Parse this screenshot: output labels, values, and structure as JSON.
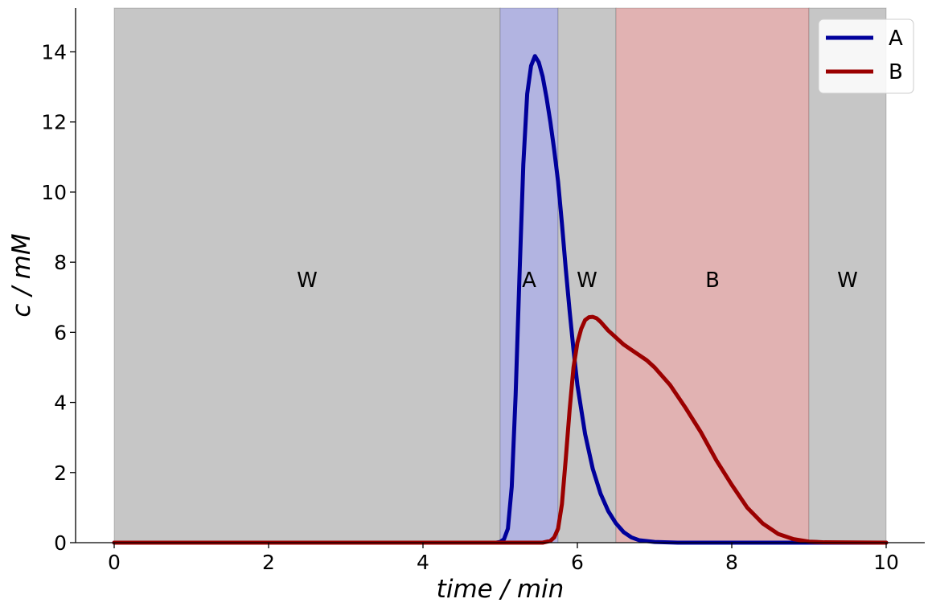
{
  "chart_data": {
    "type": "line",
    "xlabel": "time / min",
    "ylabel": "c / mM",
    "xlim": [
      -0.5,
      10.5
    ],
    "ylim": [
      0,
      15.25
    ],
    "x_ticks": [
      0,
      2,
      4,
      6,
      8,
      10
    ],
    "y_ticks": [
      0,
      2,
      4,
      6,
      8,
      10,
      12,
      14
    ],
    "grid": false,
    "legend": {
      "position": "top-right"
    },
    "regions": [
      {
        "label": "W",
        "start": 0,
        "end": 5.0,
        "color": "#c6c6c6"
      },
      {
        "label": "A",
        "start": 5.0,
        "end": 5.75,
        "color": "#b2b4e1"
      },
      {
        "label": "W",
        "start": 5.75,
        "end": 6.5,
        "color": "#c6c6c6"
      },
      {
        "label": "B",
        "start": 6.5,
        "end": 9.0,
        "color": "#e1b2b2"
      },
      {
        "label": "W",
        "start": 9.0,
        "end": 10.0,
        "color": "#c6c6c6"
      }
    ],
    "series": [
      {
        "name": "A",
        "color": "#00009b",
        "points": [
          [
            0,
            0
          ],
          [
            4.95,
            0
          ],
          [
            5.0,
            0.02
          ],
          [
            5.05,
            0.1
          ],
          [
            5.1,
            0.4
          ],
          [
            5.15,
            1.6
          ],
          [
            5.2,
            4.2
          ],
          [
            5.25,
            7.6
          ],
          [
            5.3,
            10.8
          ],
          [
            5.35,
            12.8
          ],
          [
            5.4,
            13.6
          ],
          [
            5.45,
            13.88
          ],
          [
            5.5,
            13.7
          ],
          [
            5.55,
            13.3
          ],
          [
            5.6,
            12.7
          ],
          [
            5.65,
            12.0
          ],
          [
            5.7,
            11.2
          ],
          [
            5.75,
            10.3
          ],
          [
            5.8,
            9.1
          ],
          [
            5.85,
            7.8
          ],
          [
            5.9,
            6.6
          ],
          [
            5.95,
            5.5
          ],
          [
            6.0,
            4.5
          ],
          [
            6.1,
            3.1
          ],
          [
            6.2,
            2.1
          ],
          [
            6.3,
            1.4
          ],
          [
            6.4,
            0.9
          ],
          [
            6.5,
            0.55
          ],
          [
            6.6,
            0.3
          ],
          [
            6.7,
            0.15
          ],
          [
            6.8,
            0.07
          ],
          [
            7.0,
            0.02
          ],
          [
            7.3,
            0
          ],
          [
            10.0,
            0
          ]
        ]
      },
      {
        "name": "B",
        "color": "#9b0000",
        "points": [
          [
            0,
            0
          ],
          [
            5.55,
            0
          ],
          [
            5.65,
            0.05
          ],
          [
            5.7,
            0.15
          ],
          [
            5.75,
            0.4
          ],
          [
            5.8,
            1.1
          ],
          [
            5.85,
            2.4
          ],
          [
            5.9,
            3.8
          ],
          [
            5.95,
            5.0
          ],
          [
            6.0,
            5.7
          ],
          [
            6.05,
            6.1
          ],
          [
            6.1,
            6.35
          ],
          [
            6.15,
            6.43
          ],
          [
            6.2,
            6.44
          ],
          [
            6.25,
            6.4
          ],
          [
            6.3,
            6.3
          ],
          [
            6.4,
            6.05
          ],
          [
            6.5,
            5.85
          ],
          [
            6.6,
            5.65
          ],
          [
            6.7,
            5.5
          ],
          [
            6.8,
            5.35
          ],
          [
            6.9,
            5.2
          ],
          [
            7.0,
            5.0
          ],
          [
            7.2,
            4.5
          ],
          [
            7.4,
            3.85
          ],
          [
            7.6,
            3.15
          ],
          [
            7.8,
            2.35
          ],
          [
            8.0,
            1.65
          ],
          [
            8.2,
            1.0
          ],
          [
            8.4,
            0.55
          ],
          [
            8.6,
            0.25
          ],
          [
            8.8,
            0.1
          ],
          [
            9.0,
            0.03
          ],
          [
            9.2,
            0.01
          ],
          [
            10.0,
            0
          ]
        ]
      }
    ]
  }
}
